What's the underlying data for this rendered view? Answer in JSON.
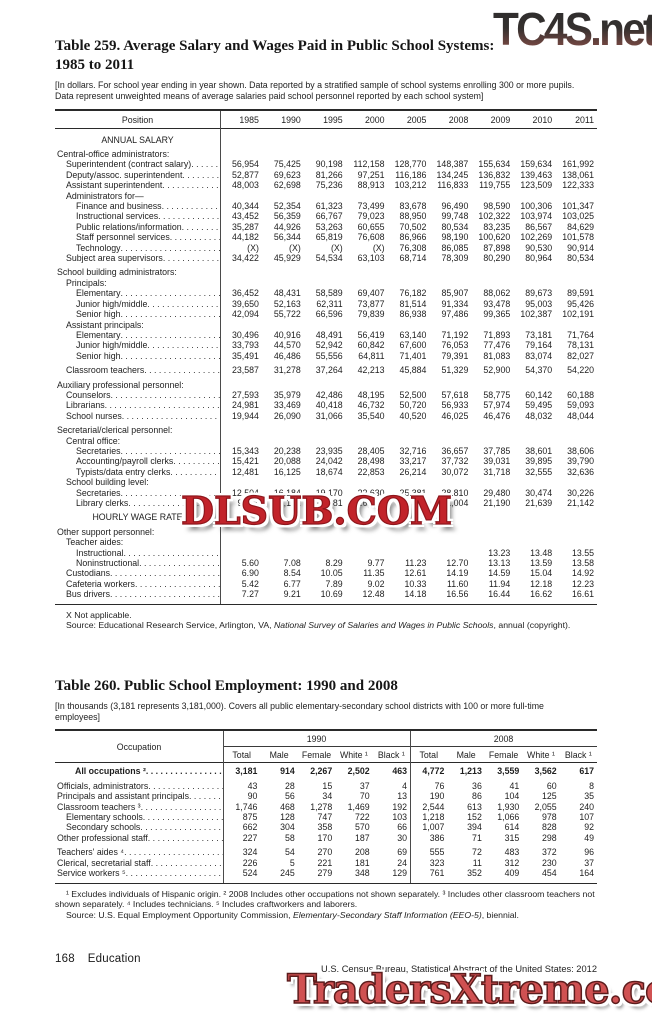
{
  "watermarks": {
    "top_right": "TC4S.net",
    "middle": "DLSUB.COM",
    "bottom": "TradersXtreme.com",
    "red": "#c2232a",
    "bottom_fill": "#d05152"
  },
  "table259": {
    "title_line1": "Table 259. Average Salary and Wages Paid in Public School Systems:",
    "title_line2": "1985 to 2011",
    "note": "[In dollars. For school year ending in year shown. Data reported by a stratified sample of school systems enrolling 300 or more pupils. Data represent unweighted means of average salaries paid school personnel reported by each school system]",
    "position_header": "Position",
    "years": [
      "1985",
      "1990",
      "1995",
      "2000",
      "2005",
      "2008",
      "2009",
      "2010",
      "2011"
    ],
    "rows": [
      {
        "t": "sec",
        "label": "ANNUAL SALARY"
      },
      {
        "t": "grp",
        "ind": 0,
        "gap": true,
        "label": "Central-office administrators:"
      },
      {
        "t": "d",
        "ind": 1,
        "label": "Superintendent (contract salary)",
        "v": [
          "56,954",
          "75,425",
          "90,198",
          "112,158",
          "128,770",
          "148,387",
          "155,634",
          "159,634",
          "161,992"
        ]
      },
      {
        "t": "d",
        "ind": 1,
        "label": "Deputy/assoc. superintendent",
        "v": [
          "52,877",
          "69,623",
          "81,266",
          "97,251",
          "116,186",
          "134,245",
          "136,832",
          "139,463",
          "138,061"
        ]
      },
      {
        "t": "d",
        "ind": 1,
        "label": "Assistant superintendent",
        "v": [
          "48,003",
          "62,698",
          "75,236",
          "88,913",
          "103,212",
          "116,833",
          "119,755",
          "123,509",
          "122,333"
        ]
      },
      {
        "t": "grp",
        "ind": 1,
        "label": "Administrators for—"
      },
      {
        "t": "d",
        "ind": 2,
        "label": "Finance and business",
        "v": [
          "40,344",
          "52,354",
          "61,323",
          "73,499",
          "83,678",
          "96,490",
          "98,590",
          "100,306",
          "101,347"
        ]
      },
      {
        "t": "d",
        "ind": 2,
        "label": "Instructional services",
        "v": [
          "43,452",
          "56,359",
          "66,767",
          "79,023",
          "88,950",
          "99,748",
          "102,322",
          "103,974",
          "103,025"
        ]
      },
      {
        "t": "d",
        "ind": 2,
        "label": "Public relations/information",
        "v": [
          "35,287",
          "44,926",
          "53,263",
          "60,655",
          "70,502",
          "80,534",
          "83,235",
          "86,567",
          "84,629"
        ]
      },
      {
        "t": "d",
        "ind": 2,
        "label": "Staff personnel services",
        "v": [
          "44,182",
          "56,344",
          "65,819",
          "76,608",
          "86,966",
          "98,190",
          "100,620",
          "102,269",
          "101,578"
        ]
      },
      {
        "t": "d",
        "ind": 2,
        "label": "Technology",
        "v": [
          "(X)",
          "(X)",
          "(X)",
          "(X)",
          "76,308",
          "86,085",
          "87,898",
          "90,530",
          "90,914"
        ]
      },
      {
        "t": "d",
        "ind": 1,
        "label": "Subject area supervisors",
        "v": [
          "34,422",
          "45,929",
          "54,534",
          "63,103",
          "68,714",
          "78,309",
          "80,290",
          "80,964",
          "80,534"
        ]
      },
      {
        "t": "grp",
        "ind": 0,
        "gap": true,
        "label": "School building administrators:"
      },
      {
        "t": "grp",
        "ind": 1,
        "label": "Principals:"
      },
      {
        "t": "d",
        "ind": 2,
        "label": "Elementary",
        "v": [
          "36,452",
          "48,431",
          "58,589",
          "69,407",
          "76,182",
          "85,907",
          "88,062",
          "89,673",
          "89,591"
        ]
      },
      {
        "t": "d",
        "ind": 2,
        "label": "Junior high/middle",
        "v": [
          "39,650",
          "52,163",
          "62,311",
          "73,877",
          "81,514",
          "91,334",
          "93,478",
          "95,003",
          "95,426"
        ]
      },
      {
        "t": "d",
        "ind": 2,
        "label": "Senior high",
        "v": [
          "42,094",
          "55,722",
          "66,596",
          "79,839",
          "86,938",
          "97,486",
          "99,365",
          "102,387",
          "102,191"
        ]
      },
      {
        "t": "grp",
        "ind": 1,
        "label": "Assistant principals:"
      },
      {
        "t": "d",
        "ind": 2,
        "label": "Elementary",
        "v": [
          "30,496",
          "40,916",
          "48,491",
          "56,419",
          "63,140",
          "71,192",
          "71,893",
          "73,181",
          "71,764"
        ]
      },
      {
        "t": "d",
        "ind": 2,
        "label": "Junior high/middle",
        "v": [
          "33,793",
          "44,570",
          "52,942",
          "60,842",
          "67,600",
          "76,053",
          "77,476",
          "79,164",
          "78,131"
        ]
      },
      {
        "t": "d",
        "ind": 2,
        "label": "Senior high",
        "v": [
          "35,491",
          "46,486",
          "55,556",
          "64,811",
          "71,401",
          "79,391",
          "81,083",
          "83,074",
          "82,027"
        ]
      },
      {
        "t": "d",
        "ind": 1,
        "gap": true,
        "label": "Classroom teachers",
        "v": [
          "23,587",
          "31,278",
          "37,264",
          "42,213",
          "45,884",
          "51,329",
          "52,900",
          "54,370",
          "54,220"
        ]
      },
      {
        "t": "grp",
        "ind": 0,
        "gap": true,
        "label": "Auxiliary professional personnel:"
      },
      {
        "t": "d",
        "ind": 1,
        "label": "Counselors",
        "v": [
          "27,593",
          "35,979",
          "42,486",
          "48,195",
          "52,500",
          "57,618",
          "58,775",
          "60,142",
          "60,188"
        ]
      },
      {
        "t": "d",
        "ind": 1,
        "label": "Librarians",
        "v": [
          "24,981",
          "33,469",
          "40,418",
          "46,732",
          "50,720",
          "56,933",
          "57,974",
          "59,495",
          "59,093"
        ]
      },
      {
        "t": "d",
        "ind": 1,
        "label": "School nurses",
        "v": [
          "19,944",
          "26,090",
          "31,066",
          "35,540",
          "40,520",
          "46,025",
          "46,476",
          "48,032",
          "48,044"
        ]
      },
      {
        "t": "grp",
        "ind": 0,
        "gap": true,
        "label": "Secretarial/clerical personnel:"
      },
      {
        "t": "grp",
        "ind": 1,
        "label": "Central office:"
      },
      {
        "t": "d",
        "ind": 2,
        "label": "Secretaries",
        "v": [
          "15,343",
          "20,238",
          "23,935",
          "28,405",
          "32,716",
          "36,657",
          "37,785",
          "38,601",
          "38,606"
        ]
      },
      {
        "t": "d",
        "ind": 2,
        "label": "Accounting/payroll clerks",
        "v": [
          "15,421",
          "20,088",
          "24,042",
          "28,498",
          "33,217",
          "37,732",
          "39,031",
          "39,895",
          "39,790"
        ]
      },
      {
        "t": "d",
        "ind": 2,
        "label": "Typists/data entry clerks",
        "v": [
          "12,481",
          "16,125",
          "18,674",
          "22,853",
          "26,214",
          "30,072",
          "31,718",
          "32,555",
          "32,636"
        ]
      },
      {
        "t": "grp",
        "ind": 1,
        "label": "School building level:"
      },
      {
        "t": "d",
        "ind": 2,
        "label": "Secretaries",
        "v": [
          "12,504",
          "16,184",
          "19,170",
          "22,630",
          "25,381",
          "28,810",
          "29,480",
          "30,474",
          "30,226"
        ]
      },
      {
        "t": "d",
        "ind": 2,
        "label": "Library clerks",
        "v": [
          "9,911",
          "12,152",
          "14,381",
          "16,509",
          "18,443",
          "21,004",
          "21,190",
          "21,639",
          "21,142"
        ]
      },
      {
        "t": "sec",
        "gap": true,
        "label": "HOURLY WAGE RATE"
      },
      {
        "t": "grp",
        "ind": 0,
        "gap": true,
        "label": "Other support personnel:"
      },
      {
        "t": "grp",
        "ind": 1,
        "label": "Teacher aides:"
      },
      {
        "t": "d",
        "ind": 2,
        "label": "Instructional",
        "v": [
          "",
          "",
          "",
          "",
          "",
          "",
          "13.23",
          "13.48",
          "13.55"
        ]
      },
      {
        "t": "d",
        "ind": 2,
        "label": "Noninstructional",
        "v": [
          "5.60",
          "7.08",
          "8.29",
          "9.77",
          "11.23",
          "12.70",
          "13.13",
          "13.59",
          "13.58"
        ]
      },
      {
        "t": "d",
        "ind": 1,
        "label": "Custodians",
        "v": [
          "6.90",
          "8.54",
          "10.05",
          "11.35",
          "12.61",
          "14.19",
          "14.59",
          "15.04",
          "14.92"
        ]
      },
      {
        "t": "d",
        "ind": 1,
        "label": "Cafeteria workers",
        "v": [
          "5.42",
          "6.77",
          "7.89",
          "9.02",
          "10.33",
          "11.60",
          "11.94",
          "12.18",
          "12.23"
        ]
      },
      {
        "t": "d",
        "ind": 1,
        "label": "Bus drivers",
        "v": [
          "7.27",
          "9.21",
          "10.69",
          "12.48",
          "14.18",
          "16.56",
          "16.44",
          "16.62",
          "16.61"
        ]
      }
    ],
    "footnote1": "X Not applicable.",
    "source_pre": "Source: Educational Research Service, Arlington, VA, ",
    "source_italic": "National Survey of Salaries and Wages in Public Schools",
    "source_post": ", annual (copyright)."
  },
  "table260": {
    "title": "Table 260. Public School Employment: 1990 and 2008",
    "note": "[In thousands (3,181 represents 3,181,000). Covers all public elementary-secondary school districts with 100 or more full-time employees]",
    "occupation_header": "Occupation",
    "groups": [
      {
        "label": "1990",
        "cols": [
          "Total",
          "Male",
          "Female",
          "White ¹",
          "Black ¹"
        ]
      },
      {
        "label": "2008",
        "cols": [
          "Total",
          "Male",
          "Female",
          "White ¹",
          "Black ¹"
        ]
      }
    ],
    "rows": [
      {
        "label": "All occupations ²",
        "bold": true,
        "ind": 0,
        "v": [
          "3,181",
          "914",
          "2,267",
          "2,502",
          "463",
          "4,772",
          "1,213",
          "3,559",
          "3,562",
          "617"
        ]
      },
      {
        "label": "Officials, administrators",
        "ind": 0,
        "gap": true,
        "v": [
          "43",
          "28",
          "15",
          "37",
          "4",
          "76",
          "36",
          "41",
          "60",
          "8"
        ]
      },
      {
        "label": "Principals and assistant principals",
        "ind": 0,
        "v": [
          "90",
          "56",
          "34",
          "70",
          "13",
          "190",
          "86",
          "104",
          "125",
          "35"
        ]
      },
      {
        "label": "Classroom teachers ³",
        "ind": 0,
        "v": [
          "1,746",
          "468",
          "1,278",
          "1,469",
          "192",
          "2,544",
          "613",
          "1,930",
          "2,055",
          "240"
        ]
      },
      {
        "label": "Elementary schools",
        "ind": 1,
        "v": [
          "875",
          "128",
          "747",
          "722",
          "103",
          "1,218",
          "152",
          "1,066",
          "978",
          "107"
        ]
      },
      {
        "label": "Secondary schools",
        "ind": 1,
        "v": [
          "662",
          "304",
          "358",
          "570",
          "66",
          "1,007",
          "394",
          "614",
          "828",
          "92"
        ]
      },
      {
        "label": "Other professional staff",
        "ind": 0,
        "v": [
          "227",
          "58",
          "170",
          "187",
          "30",
          "386",
          "71",
          "315",
          "298",
          "49"
        ]
      },
      {
        "label": "Teachers' aides ⁴",
        "ind": 0,
        "gap": true,
        "v": [
          "324",
          "54",
          "270",
          "208",
          "69",
          "555",
          "72",
          "483",
          "372",
          "96"
        ]
      },
      {
        "label": "Clerical, secretarial staff",
        "ind": 0,
        "v": [
          "226",
          "5",
          "221",
          "181",
          "24",
          "323",
          "11",
          "312",
          "230",
          "37"
        ]
      },
      {
        "label": "Service workers ⁵",
        "ind": 0,
        "v": [
          "524",
          "245",
          "279",
          "348",
          "129",
          "761",
          "352",
          "409",
          "454",
          "164"
        ]
      }
    ],
    "footnote1": "¹ Excludes individuals of Hispanic origin. ² 2008 Includes other occupations not shown separately. ³ Includes other classroom teachers not shown separately. ⁴ Includes technicians. ⁵ Includes craftworkers and laborers.",
    "source_pre": "Source: U.S. Equal Employment Opportunity Commission, ",
    "source_italic": "Elementary-Secondary Staff Information (EEO-5)",
    "source_post": ", biennial."
  },
  "footer": {
    "page_number": "168",
    "section": "Education",
    "source": "U.S. Census Bureau, Statistical Abstract of the United States: 2012"
  }
}
